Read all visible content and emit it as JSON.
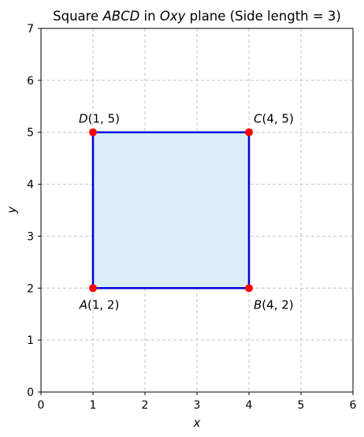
{
  "chart_data": {
    "type": "scatter",
    "title": "Square ABCD in Oxy plane (Side length = 3)",
    "title_parts": [
      {
        "text": "Square ",
        "italic": false
      },
      {
        "text": "ABCD",
        "italic": true
      },
      {
        "text": " in ",
        "italic": false
      },
      {
        "text": "Oxy",
        "italic": true
      },
      {
        "text": " plane (Side length = 3)",
        "italic": false
      }
    ],
    "xlabel": "x",
    "ylabel": "y",
    "xlim": [
      0,
      6
    ],
    "ylim": [
      0,
      7
    ],
    "xticks": [
      0,
      1,
      2,
      3,
      4,
      5,
      6
    ],
    "yticks": [
      0,
      1,
      2,
      3,
      4,
      5,
      6,
      7
    ],
    "grid": true,
    "polygon": {
      "vertices": [
        {
          "name": "A",
          "x": 1,
          "y": 2
        },
        {
          "name": "B",
          "x": 4,
          "y": 2
        },
        {
          "name": "C",
          "x": 4,
          "y": 5
        },
        {
          "name": "D",
          "x": 1,
          "y": 5
        }
      ],
      "fill_color": "#d9eef7",
      "edge_color": "#0000dd"
    },
    "points": [
      {
        "name": "A",
        "x": 1,
        "y": 2,
        "label": "A(1, 2)",
        "label_position": "bottom-left"
      },
      {
        "name": "B",
        "x": 4,
        "y": 2,
        "label": "B(4, 2)",
        "label_position": "bottom-right"
      },
      {
        "name": "C",
        "x": 4,
        "y": 5,
        "label": "C(4, 5)",
        "label_position": "top-right"
      },
      {
        "name": "D",
        "x": 1,
        "y": 5,
        "label": "D(1, 5)",
        "label_position": "top-left"
      }
    ],
    "point_color": "#ff0000"
  }
}
